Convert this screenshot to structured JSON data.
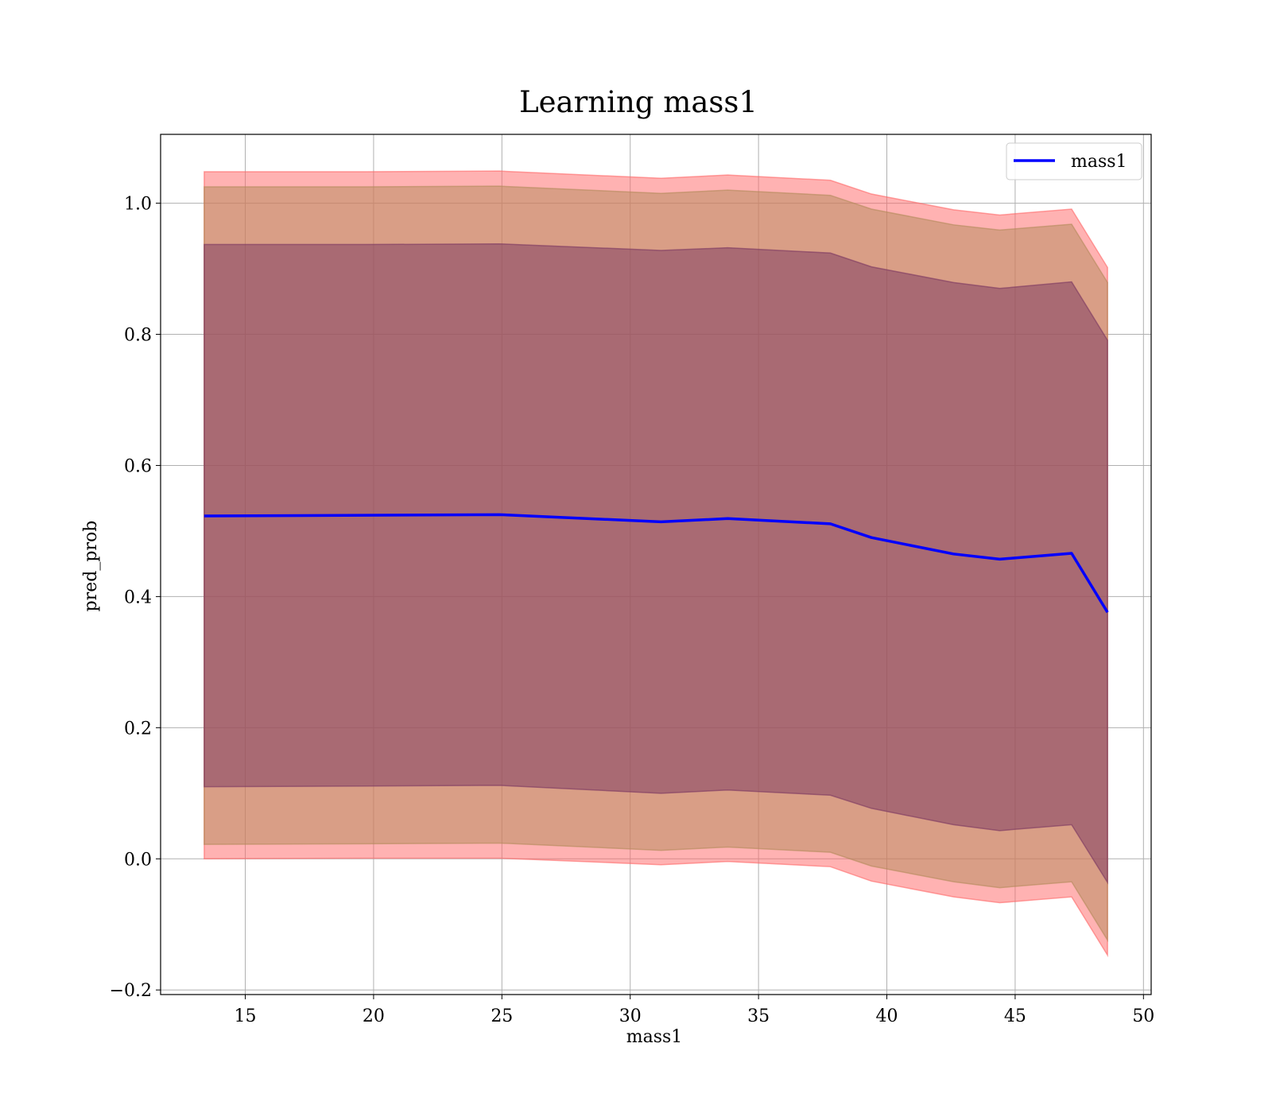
{
  "chart_data": {
    "type": "area",
    "title": "Learning mass1",
    "xlabel": "mass1",
    "ylabel": "pred_prob",
    "xlim": [
      11.7,
      50.3
    ],
    "ylim": [
      -0.207,
      1.105
    ],
    "xticks": [
      15,
      20,
      25,
      30,
      35,
      40,
      45,
      50
    ],
    "yticks": [
      -0.2,
      0.0,
      0.2,
      0.4,
      0.6,
      0.8,
      1.0
    ],
    "ytick_labels": [
      "−0.2",
      "0.0",
      "0.2",
      "0.4",
      "0.6",
      "0.8",
      "1.0"
    ],
    "grid": true,
    "legend": {
      "position": "top-right",
      "entries": [
        "mass1"
      ]
    },
    "x": [
      13.4,
      19.7,
      24.9,
      31.2,
      33.8,
      37.8,
      39.4,
      42.6,
      44.4,
      47.2,
      48.6
    ],
    "series": [
      {
        "name": "mass1",
        "color": "#0000ff",
        "values": [
          0.523,
          0.524,
          0.525,
          0.514,
          0.519,
          0.511,
          0.49,
          0.465,
          0.457,
          0.466,
          0.376
        ]
      }
    ],
    "bands": [
      {
        "color": "#ff6666",
        "upper": [
          1.048,
          1.048,
          1.049,
          1.038,
          1.043,
          1.035,
          1.014,
          0.99,
          0.982,
          0.991,
          0.902
        ],
        "lower": [
          0.0,
          0.001,
          0.001,
          -0.009,
          -0.004,
          -0.012,
          -0.034,
          -0.058,
          -0.067,
          -0.058,
          -0.147
        ]
      },
      {
        "color": "#b38a5a",
        "upper": [
          1.025,
          1.025,
          1.026,
          1.015,
          1.02,
          1.012,
          0.991,
          0.967,
          0.959,
          0.968,
          0.879
        ],
        "lower": [
          0.022,
          0.023,
          0.024,
          0.013,
          0.018,
          0.01,
          -0.011,
          -0.035,
          -0.044,
          -0.035,
          -0.124
        ]
      },
      {
        "color": "#7a3560",
        "upper": [
          0.937,
          0.937,
          0.938,
          0.928,
          0.932,
          0.924,
          0.903,
          0.879,
          0.87,
          0.88,
          0.791
        ],
        "lower": [
          0.11,
          0.111,
          0.112,
          0.1,
          0.105,
          0.097,
          0.077,
          0.052,
          0.043,
          0.052,
          -0.036
        ]
      }
    ]
  }
}
